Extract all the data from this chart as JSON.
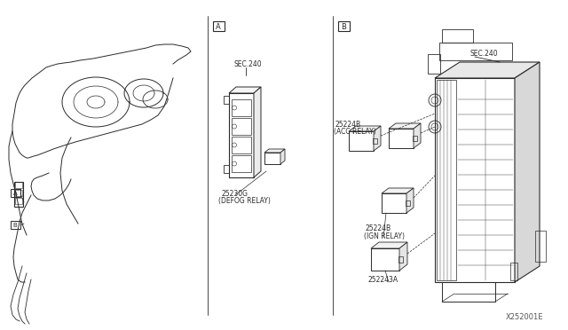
{
  "bg_color": "#ffffff",
  "line_color": "#2a2a2a",
  "text_color": "#2a2a2a",
  "fig_width": 6.4,
  "fig_height": 3.72,
  "watermark": "X252001E",
  "section_A_label": "A",
  "section_B_label": "B",
  "label_sec240_A": "SEC.240",
  "label_defog": "25230G",
  "label_defog2": "(DEFOG RELAY)",
  "label_sec240_B": "SEC.240",
  "label_acc": "25224B",
  "label_acc2": "(ACC RELAY)",
  "label_ign": "25224B",
  "label_ign2": "(IGN RELAY)",
  "label_252243a": "252243A"
}
